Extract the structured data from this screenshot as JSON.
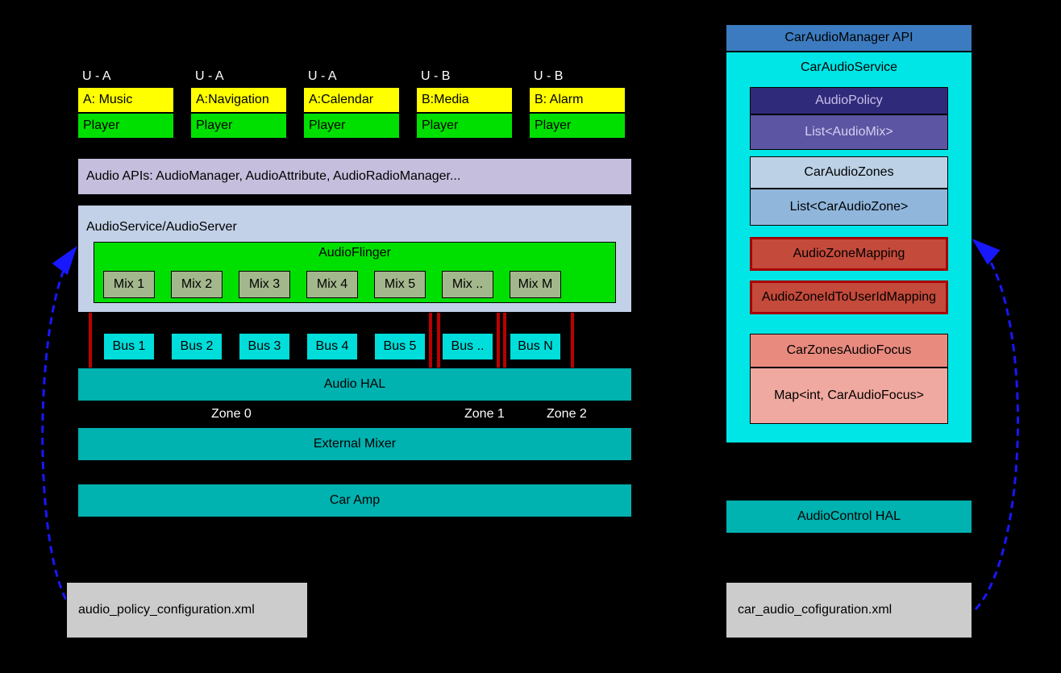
{
  "colors": {
    "yellow": "#ffff00",
    "green": "#00e000",
    "purple": "#c6bedd",
    "lightblue": "#c2d1e7",
    "limegreen": "#00e000",
    "olive": "#a3b78c",
    "cyan": "#00dedb",
    "teal": "#00b2b0",
    "gray": "#cccccc",
    "blue": "#3c7bbf",
    "cyan2": "#00e6e6",
    "navy": "#2f2a7a",
    "indigo": "#5c55a3",
    "paleblue": "#bcd1e6",
    "midblue": "#90b6dc",
    "red": "#c44a3b",
    "salmon": "#e98a7e",
    "lightsalmon": "#f0a9a0",
    "darkborder": "#a50000",
    "zoneBorder": "#bb0000"
  },
  "apps": [
    {
      "u": "U - A",
      "a": "A: Music",
      "p": "Player"
    },
    {
      "u": "U - A",
      "a": "A:Navigation",
      "p": "Player"
    },
    {
      "u": "U - A",
      "a": "A:Calendar",
      "p": "Player"
    },
    {
      "u": "U - B",
      "a": "B:Media",
      "p": "Player"
    },
    {
      "u": "U - B",
      "a": "B: Alarm",
      "p": "Player"
    }
  ],
  "audioAPIs": "Audio APIs: AudioManager, AudioAttribute, AudioRadioManager...",
  "audioService": "AudioService/AudioServer",
  "audioFlinger": "AudioFlinger",
  "mixes": [
    "Mix 1",
    "Mix 2",
    "Mix 3",
    "Mix 4",
    "Mix 5",
    "Mix ..",
    "Mix M"
  ],
  "buses": [
    "Bus 1",
    "Bus 2",
    "Bus 3",
    "Bus 4",
    "Bus 5",
    "Bus ..",
    "Bus N"
  ],
  "audioHAL": "Audio HAL",
  "externalMixer": "External Mixer",
  "carAmp": "Car Amp",
  "leftXml": "audio_policy_configuration.xml",
  "zone2": "Zone 2",
  "zone1": "Zone 1",
  "zone0": "Zone 0",
  "carAudioMgr": "CarAudioManager API",
  "carAudioService": "CarAudioService",
  "audioPolicy": "AudioPolicy",
  "listAudioMix": "List<AudioMix>",
  "carAudioZones": "CarAudioZones",
  "listCarAudioZone": "List<CarAudioZone>",
  "audioZoneMapping": "AudioZoneMapping",
  "audioZoneIdMapping": "AudioZoneIdToUserIdMapping",
  "carZonesAudioFocus": "CarZonesAudioFocus",
  "mapFocus": "Map<int, CarAudioFocus>",
  "audioControlHal": "AudioControl HAL",
  "rightXml": "car_audio_cofiguration.xml",
  "layout": {
    "appStartX": 96,
    "appGap": 140,
    "appW": 120,
    "appUy": 82,
    "appAy": 108,
    "appPy": 140,
    "mixStartX": 128,
    "mixGap": 84,
    "mixW": 64,
    "mixY": 336,
    "mixH": 34,
    "busStartX": 128,
    "busGap": 84,
    "busW": 64,
    "busY": 413,
    "busH": 34,
    "rightX": 940
  }
}
